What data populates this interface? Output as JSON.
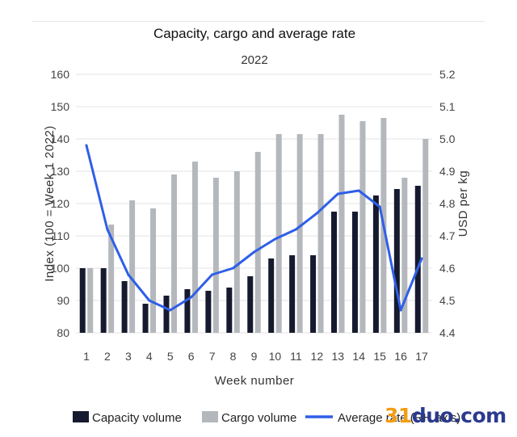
{
  "chart_data": {
    "type": "bar",
    "title": "Capacity, cargo and average rate",
    "subtitle": "2022",
    "xlabel": "Week number",
    "ylabel": "Index (100 = Week 1 2022)",
    "y2label": "USD per kg",
    "categories": [
      "1",
      "2",
      "3",
      "4",
      "5",
      "6",
      "7",
      "8",
      "9",
      "10",
      "11",
      "12",
      "13",
      "14",
      "15",
      "16",
      "17"
    ],
    "ylim": [
      80,
      160
    ],
    "yticks": [
      "80",
      "90",
      "100",
      "110",
      "120",
      "130",
      "140",
      "150",
      "160"
    ],
    "y2lim": [
      4.4,
      5.2
    ],
    "y2ticks": [
      "4.4",
      "4.5",
      "4.6",
      "4.7",
      "4.8",
      "4.9",
      "5.0",
      "5.1",
      "5.2"
    ],
    "grid": "horizontal",
    "legend_position": "bottom",
    "series": [
      {
        "name": "Capacity volume",
        "kind": "bar",
        "axis": "left",
        "color": "#161a2e",
        "values": [
          100,
          100,
          96,
          89,
          91.5,
          93.5,
          93,
          94,
          97.5,
          103,
          104,
          104,
          117.5,
          117.5,
          122.5,
          124.5,
          125.5
        ]
      },
      {
        "name": "Cargo volume",
        "kind": "bar",
        "axis": "left",
        "color": "#b4b8bd",
        "values": [
          100,
          113.5,
          121,
          118.5,
          129,
          133,
          128,
          130,
          136,
          141.5,
          141.5,
          141.5,
          147.5,
          145.5,
          146.5,
          128,
          140
        ]
      },
      {
        "name": "Average rate (RH axis)",
        "kind": "line",
        "axis": "right",
        "color": "#2f5fe8",
        "values": [
          4.98,
          4.72,
          4.58,
          4.5,
          4.47,
          4.51,
          4.58,
          4.6,
          4.65,
          4.69,
          4.72,
          4.77,
          4.83,
          4.84,
          4.79,
          4.47,
          4.63
        ]
      }
    ]
  },
  "legend": [
    {
      "label": "Capacity volume",
      "color": "#161a2e",
      "shape": "square"
    },
    {
      "label": "Cargo volume",
      "color": "#b4b8bd",
      "shape": "square"
    },
    {
      "label": "Average rate (RH axis)",
      "color": "#2f5fe8",
      "shape": "line"
    }
  ],
  "watermark": {
    "part1": "31",
    "part2": "duo.com"
  }
}
